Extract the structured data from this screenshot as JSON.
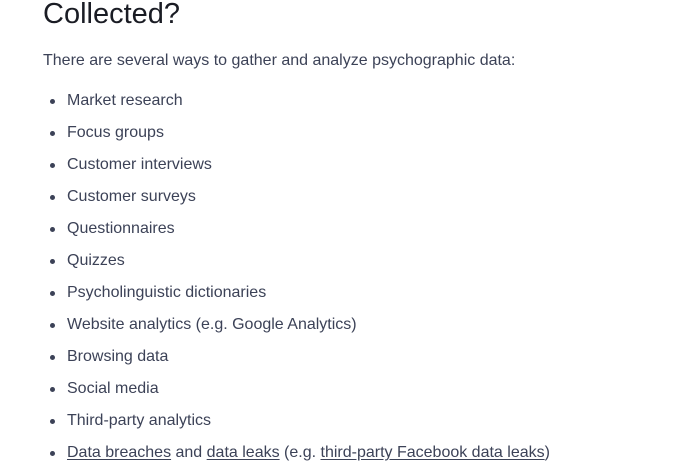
{
  "article": {
    "heading": "Collected?",
    "intro": "There are several ways to gather and analyze psychographic data:",
    "items": [
      "Market research",
      "Focus groups",
      "Customer interviews",
      "Customer surveys",
      "Questionnaires",
      "Quizzes",
      "Psycholinguistic dictionaries",
      "Website analytics (e.g. Google Analytics)",
      "Browsing data",
      "Social media",
      "Third-party analytics"
    ],
    "last_item": {
      "link1": "Data breaches",
      "text1": " and ",
      "link2": "data leaks",
      "text2": " (e.g. ",
      "link3": "third-party Facebook data leaks",
      "text3": ")"
    }
  }
}
